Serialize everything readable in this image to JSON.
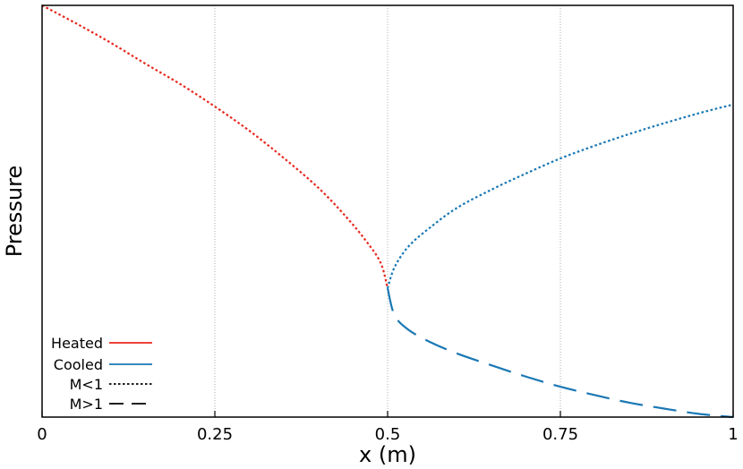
{
  "chart_data": {
    "type": "line",
    "title": "",
    "xlabel": "x (m)",
    "ylabel": "Pressure",
    "xlim": [
      0,
      1
    ],
    "ylim": [
      0,
      1
    ],
    "x_ticks": [
      0,
      0.25,
      0.5,
      0.75,
      1
    ],
    "x_tick_labels": [
      "0",
      "0.25",
      "0.5",
      "0.75",
      "1"
    ],
    "y_tick_labels_shown": false,
    "grid": "vertical dotted gridlines at x ticks",
    "legend": {
      "placement": "bottom-left",
      "entries": [
        {
          "label": "Heated",
          "color": "#e8281e",
          "style": "solid"
        },
        {
          "label": "Cooled",
          "color": "#1a78b4",
          "style": "solid"
        },
        {
          "label": "M<1",
          "color": "#000000",
          "style": "dotted"
        },
        {
          "label": "M>1",
          "color": "#000000",
          "style": "dashed"
        }
      ]
    },
    "series": [
      {
        "name": "Heated",
        "color": "#e8281e",
        "style": "dotted",
        "mach_regime": "M<1",
        "points": [
          [
            0.0,
            1.0
          ],
          [
            0.05,
            0.9555
          ],
          [
            0.1,
            0.9085
          ],
          [
            0.15,
            0.8578
          ],
          [
            0.2,
            0.8087
          ],
          [
            0.25,
            0.7543
          ],
          [
            0.3,
            0.6954
          ],
          [
            0.35,
            0.6289
          ],
          [
            0.4,
            0.5565
          ],
          [
            0.44,
            0.4863
          ],
          [
            0.47,
            0.4252
          ],
          [
            0.49,
            0.3743
          ],
          [
            0.5,
            0.3129
          ]
        ]
      },
      {
        "name": "Cooled",
        "color": "#1a78b4",
        "style": "dotted",
        "mach_regime": "M<1",
        "points": [
          [
            0.5,
            0.3129
          ],
          [
            0.51,
            0.3639
          ],
          [
            0.53,
            0.414
          ],
          [
            0.56,
            0.4585
          ],
          [
            0.6,
            0.5077
          ],
          [
            0.65,
            0.5522
          ],
          [
            0.7,
            0.5915
          ],
          [
            0.75,
            0.6282
          ],
          [
            0.8,
            0.6593
          ],
          [
            0.85,
            0.6877
          ],
          [
            0.9,
            0.7136
          ],
          [
            0.95,
            0.7378
          ],
          [
            1.0,
            0.7593
          ]
        ]
      },
      {
        "name": "Cooled",
        "color": "#1a78b4",
        "style": "dashed",
        "mach_regime": "M>1",
        "points": [
          [
            0.5,
            0.3129
          ],
          [
            0.51,
            0.2473
          ],
          [
            0.53,
            0.2122
          ],
          [
            0.56,
            0.1835
          ],
          [
            0.6,
            0.1547
          ],
          [
            0.65,
            0.1259
          ],
          [
            0.7,
            0.0984
          ],
          [
            0.75,
            0.0738
          ],
          [
            0.8,
            0.0534
          ],
          [
            0.85,
            0.0349
          ],
          [
            0.9,
            0.0207
          ],
          [
            0.95,
            0.0079
          ],
          [
            1.0,
            0.0
          ]
        ]
      }
    ]
  },
  "colors": {
    "heated": "#e8281e",
    "cooled": "#1a78b4",
    "grid": "#9a9a9a",
    "frame": "#000000"
  }
}
